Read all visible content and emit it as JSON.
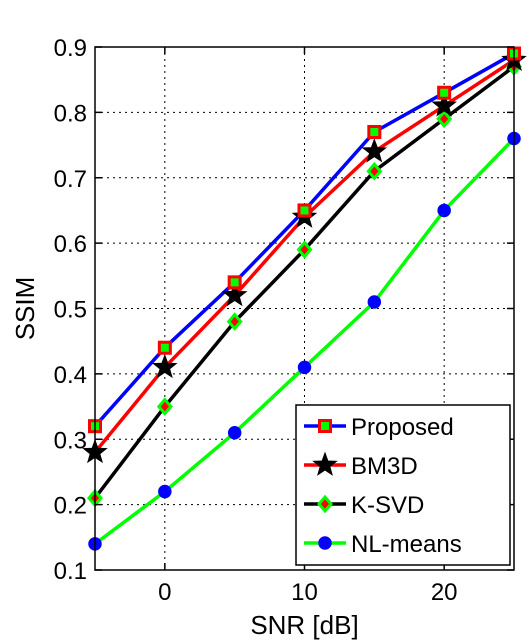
{
  "chart_data": {
    "type": "line",
    "title": "",
    "xlabel": "SNR [dB]",
    "ylabel": "SSIM",
    "xlim": [
      -5,
      25
    ],
    "ylim": [
      0.1,
      0.9
    ],
    "grid": true,
    "legend_position": "bottom-right",
    "x": [
      -5,
      0,
      5,
      10,
      15,
      20,
      25
    ],
    "xticks": [
      0,
      10,
      20
    ],
    "xtick_labels": [
      "0",
      "10",
      "20"
    ],
    "yticks": [
      0.1,
      0.2,
      0.3,
      0.4,
      0.5,
      0.6,
      0.7,
      0.8,
      0.9
    ],
    "ytick_labels": [
      "0.1",
      "0.2",
      "0.3",
      "0.4",
      "0.5",
      "0.6",
      "0.7",
      "0.8",
      "0.9"
    ],
    "series": [
      {
        "name": "Proposed",
        "values": [
          0.32,
          0.44,
          0.54,
          0.65,
          0.77,
          0.83,
          0.89
        ],
        "line_color": "#0000ff",
        "marker": "square",
        "marker_edge": "#ff0000",
        "marker_fill": "#00ff00"
      },
      {
        "name": "BM3D",
        "values": [
          0.28,
          0.41,
          0.52,
          0.64,
          0.74,
          0.81,
          0.88
        ],
        "line_color": "#ff0000",
        "marker": "star",
        "marker_edge": "#000000",
        "marker_fill": "#000000"
      },
      {
        "name": "K-SVD",
        "values": [
          0.21,
          0.35,
          0.48,
          0.59,
          0.71,
          0.79,
          0.87
        ],
        "line_color": "#000000",
        "marker": "diamond",
        "marker_edge": "#00ff00",
        "marker_fill": "#ff0000"
      },
      {
        "name": "NL-means",
        "values": [
          0.14,
          0.22,
          0.31,
          0.41,
          0.51,
          0.65,
          0.76
        ],
        "line_color": "#00ff00",
        "marker": "circle",
        "marker_edge": "#0000ff",
        "marker_fill": "#0000ff"
      }
    ]
  }
}
